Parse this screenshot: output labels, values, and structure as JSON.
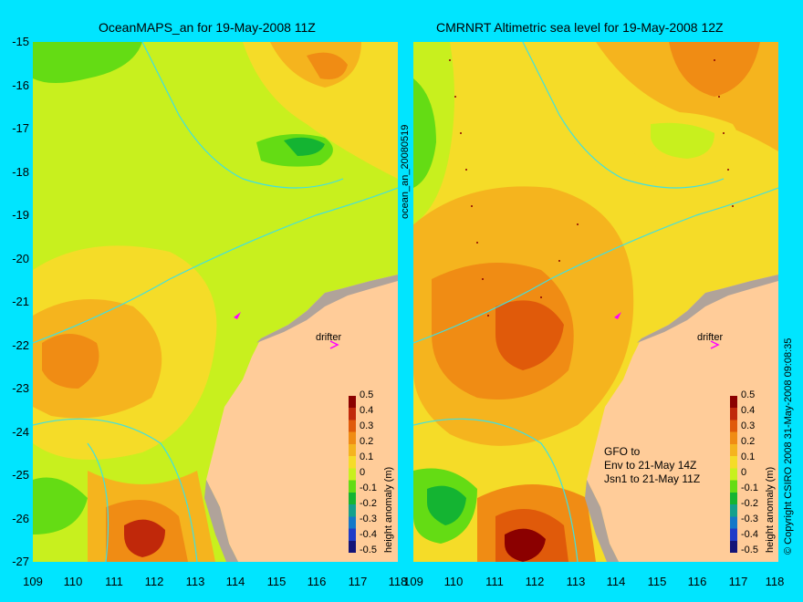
{
  "left_panel": {
    "title": "OceanMAPS_an for 19-May-2008 11Z",
    "drifter_label": "drifter",
    "colorbar_label": "height anomaly (m)"
  },
  "right_panel": {
    "title": "CMRNRT Altimetric sea level  for 19-May-2008 12Z",
    "drifter_label": "drifter",
    "colorbar_label": "height anomaly (m)",
    "note_lines": [
      "GFO to",
      "Env to 21-May 14Z",
      "Jsn1 to 21-May 11Z"
    ]
  },
  "side_label": "ocean_an_20080519",
  "copyright": "© Copyright CSIRO 2008   31-May-2008 09:08:35",
  "axes": {
    "y_ticks": [
      "-15",
      "-16",
      "-17",
      "-18",
      "-19",
      "-20",
      "-21",
      "-22",
      "-23",
      "-24",
      "-25",
      "-26",
      "-27"
    ],
    "x_ticks_left": [
      "109",
      "110",
      "111",
      "112",
      "113",
      "114",
      "115",
      "116",
      "117",
      "118"
    ],
    "x_ticks_right": [
      "109",
      "110",
      "111",
      "112",
      "113",
      "114",
      "115",
      "116",
      "117",
      "118"
    ],
    "lon_range": [
      109,
      118
    ],
    "lat_range": [
      -27,
      -15
    ]
  },
  "colorbar": {
    "ticks": [
      "0.5",
      "0.4",
      "0.3",
      "0.2",
      "0.1",
      "0",
      "-0.1",
      "-0.2",
      "-0.3",
      "-0.4",
      "-0.5"
    ],
    "colors": [
      "#8b0000",
      "#c0280a",
      "#e05a0a",
      "#f08c14",
      "#f5b41e",
      "#f5dc28",
      "#c8f01e",
      "#64dc14",
      "#14b432",
      "#14a08c",
      "#1478c8",
      "#1e3cc8",
      "#141478"
    ]
  },
  "colors": {
    "background": "#00e5ff",
    "land": "#ffcc99",
    "coast_rock": "#b0a39a",
    "contour_line": "#40e0e0",
    "drifter": "#ff00ff"
  }
}
